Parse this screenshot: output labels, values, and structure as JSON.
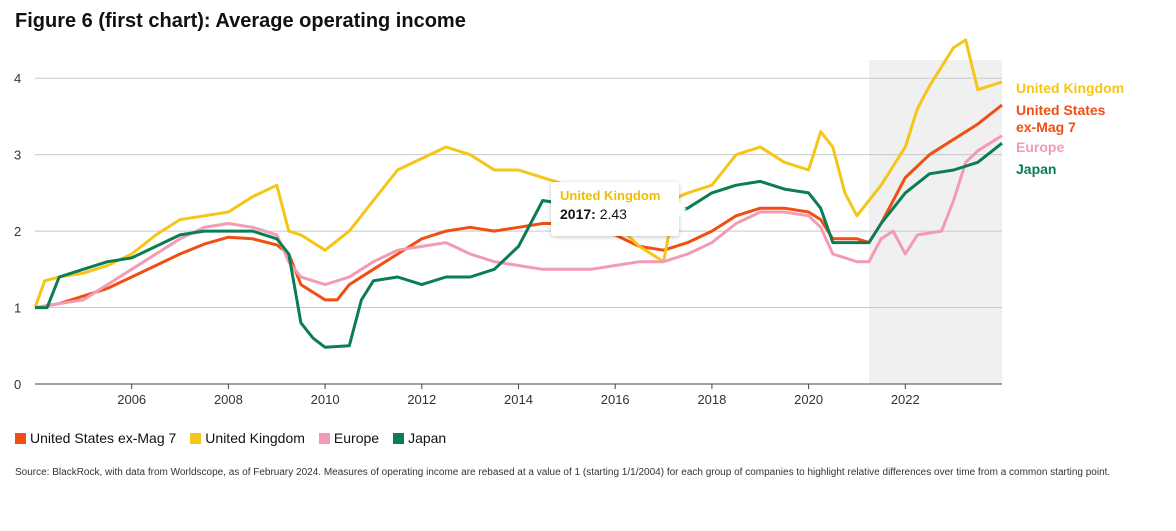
{
  "title": "Figure 6 (first chart): Average operating income",
  "tooltip": {
    "series": "United Kingdom",
    "year": "2017:",
    "value": "2.43"
  },
  "legend": [
    {
      "label": "United States ex-Mag 7",
      "color": "#f04e12"
    },
    {
      "label": "United Kingdom",
      "color": "#f5c518"
    },
    {
      "label": "Europe",
      "color": "#f29bb4"
    },
    {
      "label": "Japan",
      "color": "#0b7d52"
    }
  ],
  "source": "Source: BlackRock, with data from Worldscope, as of February 2024. Measures of operating income are rebased at a value of 1 (starting 1/1/2004) for each group of companies to highlight relative differences over time from a common starting point.",
  "chart_data": {
    "type": "line",
    "title": "Figure 6 (first chart): Average operating income",
    "xlabel": "",
    "ylabel": "",
    "xlim": [
      2004,
      2024
    ],
    "ylim": [
      0,
      4.5
    ],
    "yticks": [
      0,
      1,
      2,
      3,
      4
    ],
    "xticks": [
      2006,
      2008,
      2010,
      2012,
      2014,
      2016,
      2018,
      2020,
      2022
    ],
    "grid": "horizontal",
    "shaded_region": [
      2021.25,
      2024
    ],
    "end_labels": [
      {
        "series": "United Kingdom",
        "text": [
          "United Kingdom"
        ]
      },
      {
        "series": "United States ex-Mag 7",
        "text": [
          "United States",
          "ex-Mag 7"
        ]
      },
      {
        "series": "Europe",
        "text": [
          "Europe"
        ]
      },
      {
        "series": "Japan",
        "text": [
          "Japan"
        ]
      }
    ],
    "series": [
      {
        "name": "United States ex-Mag 7",
        "color": "#f04e12",
        "points": [
          [
            2004,
            1.0
          ],
          [
            2004.5,
            1.05
          ],
          [
            2005,
            1.15
          ],
          [
            2005.5,
            1.25
          ],
          [
            2006,
            1.4
          ],
          [
            2006.5,
            1.55
          ],
          [
            2007,
            1.7
          ],
          [
            2007.5,
            1.83
          ],
          [
            2008,
            1.92
          ],
          [
            2008.5,
            1.9
          ],
          [
            2009,
            1.82
          ],
          [
            2009.25,
            1.7
          ],
          [
            2009.5,
            1.3
          ],
          [
            2010,
            1.1
          ],
          [
            2010.25,
            1.1
          ],
          [
            2010.5,
            1.3
          ],
          [
            2011,
            1.5
          ],
          [
            2011.5,
            1.7
          ],
          [
            2012,
            1.9
          ],
          [
            2012.5,
            2.0
          ],
          [
            2013,
            2.05
          ],
          [
            2013.5,
            2.0
          ],
          [
            2014,
            2.05
          ],
          [
            2014.5,
            2.1
          ],
          [
            2015,
            2.1
          ],
          [
            2015.5,
            2.0
          ],
          [
            2016,
            1.95
          ],
          [
            2016.5,
            1.8
          ],
          [
            2017,
            1.75
          ],
          [
            2017.5,
            1.85
          ],
          [
            2018,
            2.0
          ],
          [
            2018.5,
            2.2
          ],
          [
            2019,
            2.3
          ],
          [
            2019.5,
            2.3
          ],
          [
            2020,
            2.25
          ],
          [
            2020.25,
            2.15
          ],
          [
            2020.5,
            1.9
          ],
          [
            2021,
            1.9
          ],
          [
            2021.25,
            1.85
          ],
          [
            2021.5,
            2.1
          ],
          [
            2022,
            2.7
          ],
          [
            2022.5,
            3.0
          ],
          [
            2023,
            3.2
          ],
          [
            2023.5,
            3.4
          ],
          [
            2024,
            3.65
          ]
        ]
      },
      {
        "name": "United Kingdom",
        "color": "#f5c518",
        "points": [
          [
            2004,
            1.0
          ],
          [
            2004.2,
            1.35
          ],
          [
            2004.5,
            1.4
          ],
          [
            2005,
            1.45
          ],
          [
            2005.5,
            1.55
          ],
          [
            2006,
            1.7
          ],
          [
            2006.5,
            1.95
          ],
          [
            2007,
            2.15
          ],
          [
            2007.5,
            2.2
          ],
          [
            2008,
            2.25
          ],
          [
            2008.5,
            2.45
          ],
          [
            2009,
            2.6
          ],
          [
            2009.25,
            2.0
          ],
          [
            2009.5,
            1.95
          ],
          [
            2010,
            1.75
          ],
          [
            2010.5,
            2.0
          ],
          [
            2011,
            2.4
          ],
          [
            2011.25,
            2.6
          ],
          [
            2011.5,
            2.8
          ],
          [
            2012,
            2.95
          ],
          [
            2012.5,
            3.1
          ],
          [
            2013,
            3.0
          ],
          [
            2013.25,
            2.9
          ],
          [
            2013.5,
            2.8
          ],
          [
            2014,
            2.8
          ],
          [
            2014.5,
            2.7
          ],
          [
            2015,
            2.6
          ],
          [
            2015.5,
            2.35
          ],
          [
            2016,
            2.1
          ],
          [
            2016.5,
            1.8
          ],
          [
            2017,
            1.6
          ],
          [
            2017.25,
            2.43
          ],
          [
            2017.5,
            2.5
          ],
          [
            2018,
            2.6
          ],
          [
            2018.25,
            2.8
          ],
          [
            2018.5,
            3.0
          ],
          [
            2019,
            3.1
          ],
          [
            2019.5,
            2.9
          ],
          [
            2020,
            2.8
          ],
          [
            2020.25,
            3.3
          ],
          [
            2020.5,
            3.1
          ],
          [
            2020.75,
            2.5
          ],
          [
            2021,
            2.2
          ],
          [
            2021.5,
            2.6
          ],
          [
            2022,
            3.1
          ],
          [
            2022.25,
            3.6
          ],
          [
            2022.5,
            3.9
          ],
          [
            2023,
            4.4
          ],
          [
            2023.25,
            4.5
          ],
          [
            2023.5,
            3.85
          ],
          [
            2024,
            3.95
          ]
        ]
      },
      {
        "name": "Europe",
        "color": "#f29bb4",
        "points": [
          [
            2004,
            1.0
          ],
          [
            2004.5,
            1.05
          ],
          [
            2005,
            1.1
          ],
          [
            2005.5,
            1.3
          ],
          [
            2006,
            1.5
          ],
          [
            2006.5,
            1.7
          ],
          [
            2007,
            1.9
          ],
          [
            2007.5,
            2.05
          ],
          [
            2008,
            2.1
          ],
          [
            2008.5,
            2.05
          ],
          [
            2009,
            1.95
          ],
          [
            2009.25,
            1.6
          ],
          [
            2009.5,
            1.4
          ],
          [
            2010,
            1.3
          ],
          [
            2010.5,
            1.4
          ],
          [
            2011,
            1.6
          ],
          [
            2011.5,
            1.75
          ],
          [
            2012,
            1.8
          ],
          [
            2012.5,
            1.85
          ],
          [
            2013,
            1.7
          ],
          [
            2013.5,
            1.6
          ],
          [
            2014,
            1.55
          ],
          [
            2014.5,
            1.5
          ],
          [
            2015,
            1.5
          ],
          [
            2015.5,
            1.5
          ],
          [
            2016,
            1.55
          ],
          [
            2016.5,
            1.6
          ],
          [
            2017,
            1.6
          ],
          [
            2017.5,
            1.7
          ],
          [
            2018,
            1.85
          ],
          [
            2018.5,
            2.1
          ],
          [
            2019,
            2.25
          ],
          [
            2019.5,
            2.25
          ],
          [
            2020,
            2.2
          ],
          [
            2020.25,
            2.05
          ],
          [
            2020.5,
            1.7
          ],
          [
            2021,
            1.6
          ],
          [
            2021.25,
            1.6
          ],
          [
            2021.5,
            1.9
          ],
          [
            2021.75,
            2.0
          ],
          [
            2022,
            1.7
          ],
          [
            2022.25,
            1.95
          ],
          [
            2022.75,
            2.0
          ],
          [
            2023,
            2.4
          ],
          [
            2023.25,
            2.9
          ],
          [
            2023.5,
            3.05
          ],
          [
            2024,
            3.25
          ]
        ]
      },
      {
        "name": "Japan",
        "color": "#0b7d52",
        "points": [
          [
            2004,
            1.0
          ],
          [
            2004.25,
            1.0
          ],
          [
            2004.5,
            1.4
          ],
          [
            2005,
            1.5
          ],
          [
            2005.5,
            1.6
          ],
          [
            2006,
            1.65
          ],
          [
            2006.5,
            1.8
          ],
          [
            2007,
            1.95
          ],
          [
            2007.5,
            2.0
          ],
          [
            2008,
            2.0
          ],
          [
            2008.5,
            2.0
          ],
          [
            2009,
            1.9
          ],
          [
            2009.25,
            1.7
          ],
          [
            2009.5,
            0.8
          ],
          [
            2009.75,
            0.6
          ],
          [
            2010,
            0.48
          ],
          [
            2010.5,
            0.5
          ],
          [
            2010.75,
            1.1
          ],
          [
            2011,
            1.35
          ],
          [
            2011.5,
            1.4
          ],
          [
            2012,
            1.3
          ],
          [
            2012.5,
            1.4
          ],
          [
            2013,
            1.4
          ],
          [
            2013.5,
            1.5
          ],
          [
            2014,
            1.8
          ],
          [
            2014.5,
            2.4
          ],
          [
            2015,
            2.35
          ],
          [
            2015.5,
            2.2
          ],
          [
            2016,
            2.1
          ],
          [
            2016.5,
            2.15
          ],
          [
            2017,
            2.2
          ],
          [
            2017.5,
            2.3
          ],
          [
            2018,
            2.5
          ],
          [
            2018.5,
            2.6
          ],
          [
            2019,
            2.65
          ],
          [
            2019.5,
            2.55
          ],
          [
            2020,
            2.5
          ],
          [
            2020.25,
            2.3
          ],
          [
            2020.5,
            1.85
          ],
          [
            2021,
            1.85
          ],
          [
            2021.25,
            1.85
          ],
          [
            2021.5,
            2.1
          ],
          [
            2022,
            2.5
          ],
          [
            2022.5,
            2.75
          ],
          [
            2023,
            2.8
          ],
          [
            2023.5,
            2.9
          ],
          [
            2024,
            3.15
          ]
        ]
      }
    ]
  }
}
